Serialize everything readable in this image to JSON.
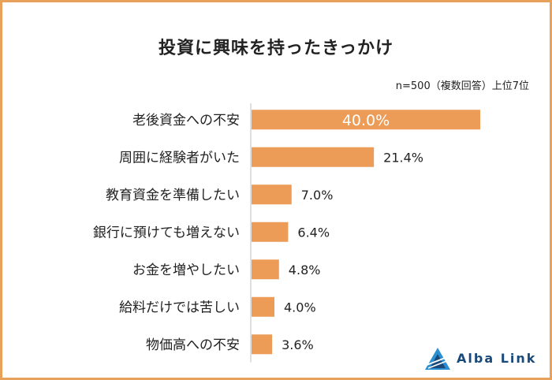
{
  "chart_data": {
    "type": "bar",
    "orientation": "horizontal",
    "title": "投資に興味を持ったきっかけ",
    "note": "n=500（複数回答）上位7位",
    "categories": [
      "老後資金への不安",
      "周囲に経験者がいた",
      "教育資金を準備したい",
      "銀行に預けても増えない",
      "お金を増やしたい",
      "給料だけでは苦しい",
      "物価高への不安"
    ],
    "values": [
      40.0,
      21.4,
      7.0,
      6.4,
      4.8,
      4.0,
      3.6
    ],
    "value_labels": [
      "40.0%",
      "21.4%",
      "7.0%",
      "6.4%",
      "4.8%",
      "4.0%",
      "3.6%"
    ],
    "xlim": [
      0,
      40
    ],
    "grid": false,
    "bar_color": "#ec9c57",
    "axis_color": "#bfbfbf"
  },
  "brand": {
    "name": "Alba Link",
    "logo_icon": "triangle-logo-icon",
    "color": "#1a4a7a"
  }
}
